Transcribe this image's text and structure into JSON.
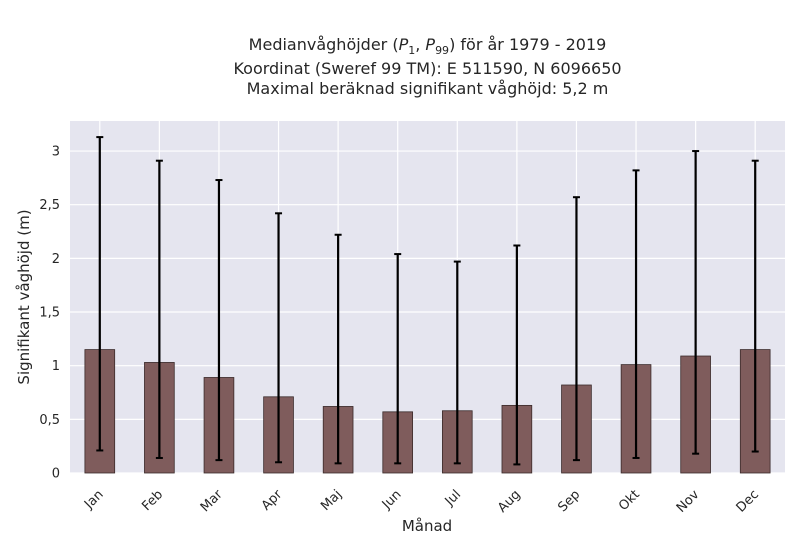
{
  "chart_data": {
    "type": "bar",
    "title_lines": [
      "Medianvåghöjder (P1, P99) för år 1979 - 2019",
      "Koordinat (Sweref 99 TM): E 511590, N 6096650",
      "Maximal beräknad signifikant våghöjd: 5,2 m"
    ],
    "xlabel": "Månad",
    "ylabel": "Signifikant våghöjd (m)",
    "categories": [
      "Jan",
      "Feb",
      "Mar",
      "Apr",
      "Maj",
      "Jun",
      "Jul",
      "Aug",
      "Sep",
      "Okt",
      "Nov",
      "Dec"
    ],
    "series": [
      {
        "values": [
          1.15,
          1.03,
          0.89,
          0.71,
          0.62,
          0.57,
          0.58,
          0.63,
          0.82,
          1.01,
          1.09,
          1.15
        ],
        "p1": [
          0.21,
          0.14,
          0.12,
          0.1,
          0.09,
          0.09,
          0.09,
          0.08,
          0.12,
          0.14,
          0.18,
          0.2
        ],
        "p99": [
          3.13,
          2.91,
          2.73,
          2.42,
          2.22,
          2.04,
          1.97,
          2.12,
          2.57,
          2.82,
          3.0,
          2.91
        ]
      }
    ],
    "ylim": [
      0,
      3.28
    ],
    "yticks": [
      0,
      0.5,
      1,
      1.5,
      2,
      2.5,
      3
    ],
    "ytick_labels": [
      "0",
      "0,5",
      "1",
      "1,5",
      "2",
      "2,5",
      "3"
    ],
    "grid": true,
    "colors": {
      "bar": "#7f5c5c",
      "bar_edge": "#3a2a2a",
      "errorbar": "#000000",
      "plot_bg": "#e5e5ef",
      "grid": "#ffffff"
    }
  }
}
